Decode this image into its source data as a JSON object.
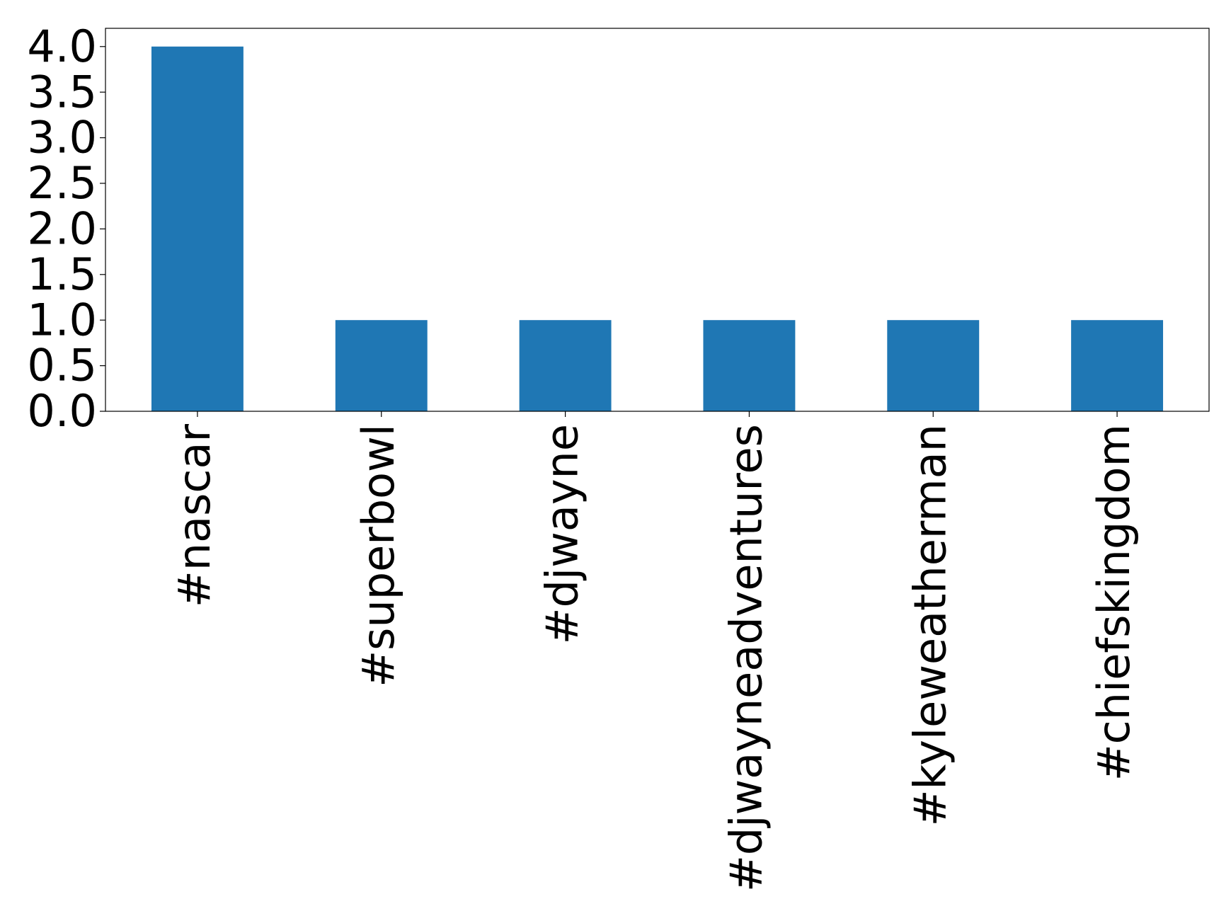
{
  "chart_data": {
    "type": "bar",
    "categories": [
      "#nascar",
      "#superbowl",
      "#djwayne",
      "#djwayneadventures",
      "#kyleweatherman",
      "#chiefskingdom"
    ],
    "values": [
      4,
      1,
      1,
      1,
      1,
      1
    ],
    "color": "#1f77b4",
    "ylim": [
      0,
      4.2
    ],
    "yticks": [
      {
        "value": 0,
        "label": "0.0"
      },
      0.5,
      {
        "value": 1,
        "label": "1.0"
      },
      1.5,
      {
        "value": 2,
        "label": "2.0"
      },
      2.5,
      {
        "value": 3,
        "label": "3.0"
      },
      3.5,
      {
        "value": 4,
        "label": "4.0"
      }
    ],
    "grid": false
  }
}
